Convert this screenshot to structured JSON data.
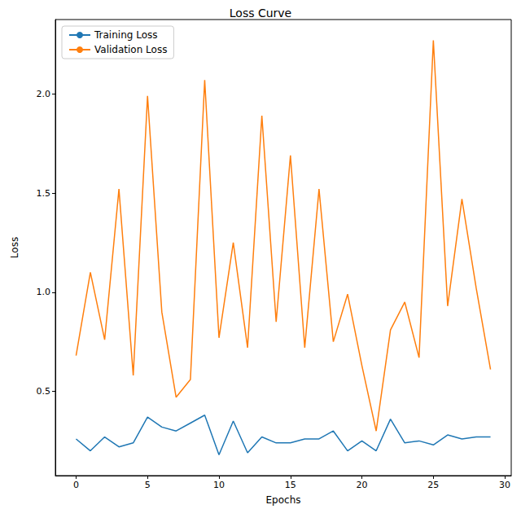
{
  "chart_data": {
    "type": "line",
    "title": "Loss Curve",
    "x_label": "Epochs",
    "y_label": "Loss",
    "x": [
      0,
      1,
      2,
      3,
      4,
      5,
      6,
      7,
      8,
      9,
      10,
      11,
      12,
      13,
      14,
      15,
      16,
      17,
      18,
      19,
      20,
      21,
      22,
      23,
      24,
      25,
      26,
      27,
      28,
      29
    ],
    "series": [
      {
        "name": "Training Loss",
        "color": "#1f77b4",
        "values": [
          0.26,
          0.2,
          0.27,
          0.22,
          0.24,
          0.37,
          0.32,
          0.3,
          0.34,
          0.38,
          0.18,
          0.35,
          0.19,
          0.27,
          0.24,
          0.24,
          0.26,
          0.26,
          0.3,
          0.2,
          0.25,
          0.2,
          0.36,
          0.24,
          0.25,
          0.23,
          0.28,
          0.26,
          0.27,
          0.27
        ]
      },
      {
        "name": "Validation Loss",
        "color": "#ff7f0e",
        "values": [
          0.68,
          1.1,
          0.76,
          1.52,
          0.58,
          1.99,
          0.9,
          0.47,
          0.56,
          2.07,
          0.77,
          1.25,
          0.72,
          1.89,
          0.85,
          1.69,
          0.72,
          1.52,
          0.75,
          0.99,
          0.63,
          0.3,
          0.81,
          0.95,
          0.67,
          2.27,
          0.93,
          1.47,
          1.02,
          0.61
        ]
      }
    ],
    "xlim": [
      -1.45,
      30.45
    ],
    "xticks": [
      0,
      5,
      10,
      15,
      20,
      25,
      30
    ],
    "ylim": [
      0.075,
      2.375
    ],
    "yticks": [
      0.5,
      {
        "value": 1,
        "label": "1.0"
      },
      1.5,
      {
        "value": 2,
        "label": "2.0"
      }
    ],
    "legend": "upper left",
    "grid": false
  }
}
